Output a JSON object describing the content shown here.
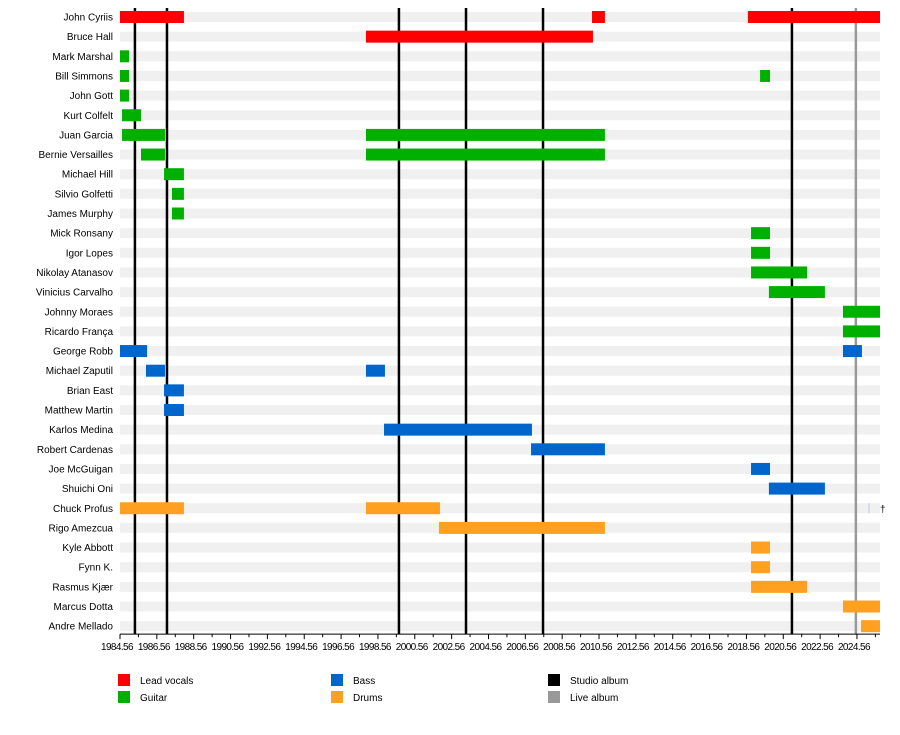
{
  "chart_data": {
    "type": "timeline",
    "xlim": [
      1984.56,
      2025.81
    ],
    "xticks": [
      "1984.56",
      "1986.56",
      "1988.56",
      "1990.56",
      "1992.56",
      "1994.56",
      "1996.56",
      "1998.56",
      "2000.56",
      "2002.56",
      "2004.56",
      "2006.56",
      "2008.56",
      "2010.56",
      "2012.56",
      "2014.56",
      "2016.56",
      "2018.56",
      "2020.56",
      "2022.56",
      "2024.56"
    ],
    "roles": {
      "vocals": {
        "label": "Lead vocals",
        "color": "#ff0000"
      },
      "guitar": {
        "label": "Guitar",
        "color": "#00b000"
      },
      "bass": {
        "label": "Bass",
        "color": "#0066cc"
      },
      "drums": {
        "label": "Drums",
        "color": "#ffa020"
      }
    },
    "markers": {
      "studio": {
        "label": "Studio album",
        "color": "#000000",
        "years": [
          1985.37,
          1987.11,
          1999.7,
          2003.34,
          2007.52,
          2021.03
        ]
      },
      "live": {
        "label": "Live album",
        "color": "#999999",
        "years": [
          2024.5
        ]
      }
    },
    "members": [
      {
        "name": "John Cyriis",
        "role": "vocals",
        "spans": [
          [
            1984.56,
            1988.03
          ],
          [
            2010.18,
            2010.88
          ],
          [
            2018.64,
            2025.81
          ]
        ]
      },
      {
        "name": "Bruce Hall",
        "role": "vocals",
        "spans": [
          [
            1997.91,
            2010.23
          ]
        ]
      },
      {
        "name": "Mark Marshal",
        "role": "guitar",
        "spans": [
          [
            1984.56,
            1985.05
          ]
        ]
      },
      {
        "name": "Bill Simmons",
        "role": "guitar",
        "spans": [
          [
            1984.56,
            1985.05
          ],
          [
            2019.3,
            2019.84
          ]
        ]
      },
      {
        "name": "John Gott",
        "role": "guitar",
        "spans": [
          [
            1984.56,
            1985.05
          ]
        ]
      },
      {
        "name": "Kurt Colfelt",
        "role": "guitar",
        "spans": [
          [
            1984.67,
            1985.7
          ]
        ]
      },
      {
        "name": "Juan Garcia",
        "role": "guitar",
        "spans": [
          [
            1984.67,
            1987.0
          ],
          [
            1997.91,
            2010.88
          ]
        ]
      },
      {
        "name": "Bernie Versailles",
        "role": "guitar",
        "spans": [
          [
            1985.7,
            1987.0
          ],
          [
            1997.91,
            2010.88
          ]
        ]
      },
      {
        "name": "Michael Hill",
        "role": "guitar",
        "spans": [
          [
            1986.95,
            1988.03
          ]
        ]
      },
      {
        "name": "Silvio Golfetti",
        "role": "guitar",
        "spans": [
          [
            1987.38,
            1988.03
          ]
        ]
      },
      {
        "name": "James Murphy",
        "role": "guitar",
        "spans": [
          [
            1987.38,
            1988.03
          ]
        ]
      },
      {
        "name": "Mick Ronsany",
        "role": "guitar",
        "spans": [
          [
            2018.81,
            2019.84
          ]
        ]
      },
      {
        "name": "Igor Lopes",
        "role": "guitar",
        "spans": [
          [
            2018.81,
            2019.84
          ]
        ]
      },
      {
        "name": "Nikolay Atanasov",
        "role": "guitar",
        "spans": [
          [
            2018.81,
            2021.85
          ]
        ]
      },
      {
        "name": "Vinicius Carvalho",
        "role": "guitar",
        "spans": [
          [
            2019.78,
            2022.82
          ]
        ]
      },
      {
        "name": "Johnny Moraes",
        "role": "guitar",
        "spans": [
          [
            2023.8,
            2025.81
          ]
        ]
      },
      {
        "name": "Ricardo França",
        "role": "guitar",
        "spans": [
          [
            2023.8,
            2025.81
          ]
        ]
      },
      {
        "name": "George Robb",
        "role": "bass",
        "spans": [
          [
            1984.56,
            1986.03
          ],
          [
            2023.8,
            2024.83
          ]
        ]
      },
      {
        "name": "Michael Zaputil",
        "role": "bass",
        "spans": [
          [
            1985.97,
            1987.0
          ],
          [
            1997.91,
            1998.94
          ]
        ]
      },
      {
        "name": "Brian East",
        "role": "bass",
        "spans": [
          [
            1986.95,
            1988.03
          ]
        ]
      },
      {
        "name": "Matthew Martin",
        "role": "bass",
        "spans": [
          [
            1986.95,
            1988.03
          ]
        ]
      },
      {
        "name": "Karlos Medina",
        "role": "bass",
        "spans": [
          [
            1998.89,
            2006.92
          ]
        ]
      },
      {
        "name": "Robert Cardenas",
        "role": "bass",
        "spans": [
          [
            2006.87,
            2010.88
          ]
        ]
      },
      {
        "name": "Joe McGuigan",
        "role": "bass",
        "spans": [
          [
            2018.81,
            2019.84
          ]
        ]
      },
      {
        "name": "Shuichi Oni",
        "role": "bass",
        "spans": [
          [
            2019.78,
            2022.82
          ]
        ]
      },
      {
        "name": "Chuck Profus",
        "role": "drums",
        "spans": [
          [
            1984.56,
            1988.03
          ],
          [
            1997.91,
            2001.93
          ]
        ],
        "note": "†"
      },
      {
        "name": "Rigo Amezcua",
        "role": "drums",
        "spans": [
          [
            2001.87,
            2010.88
          ]
        ]
      },
      {
        "name": "Kyle Abbott",
        "role": "drums",
        "spans": [
          [
            2018.81,
            2019.84
          ]
        ]
      },
      {
        "name": "Fynn K.",
        "role": "drums",
        "spans": [
          [
            2018.81,
            2019.84
          ]
        ]
      },
      {
        "name": "Rasmus Kjær",
        "role": "drums",
        "spans": [
          [
            2018.81,
            2021.85
          ]
        ]
      },
      {
        "name": "Marcus Dotta",
        "role": "drums",
        "spans": [
          [
            2023.8,
            2025.81
          ]
        ]
      },
      {
        "name": "Andre Mellado",
        "role": "drums",
        "spans": [
          [
            2024.78,
            2025.81
          ]
        ]
      }
    ]
  }
}
